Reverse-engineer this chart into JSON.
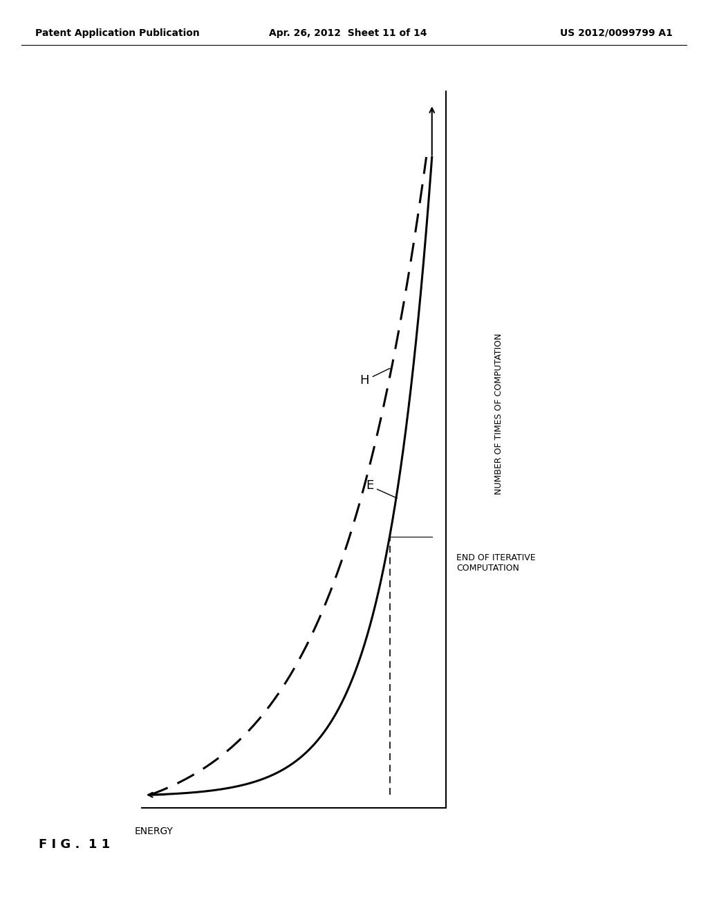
{
  "header_left": "Patent Application Publication",
  "header_center": "Apr. 26, 2012  Sheet 11 of 14",
  "header_right": "US 2012/0099799 A1",
  "ylabel": "NUMBER OF TIMES OF COMPUTATION",
  "end_iterative_line1": "END OF ITERATIVE",
  "end_iterative_line2": "COMPUTATION",
  "xlabel": "ENERGY",
  "label_H": "H",
  "label_E": "E",
  "fig_label": "F I G .  1 1",
  "bg_color": "#ffffff",
  "line_color": "#000000"
}
